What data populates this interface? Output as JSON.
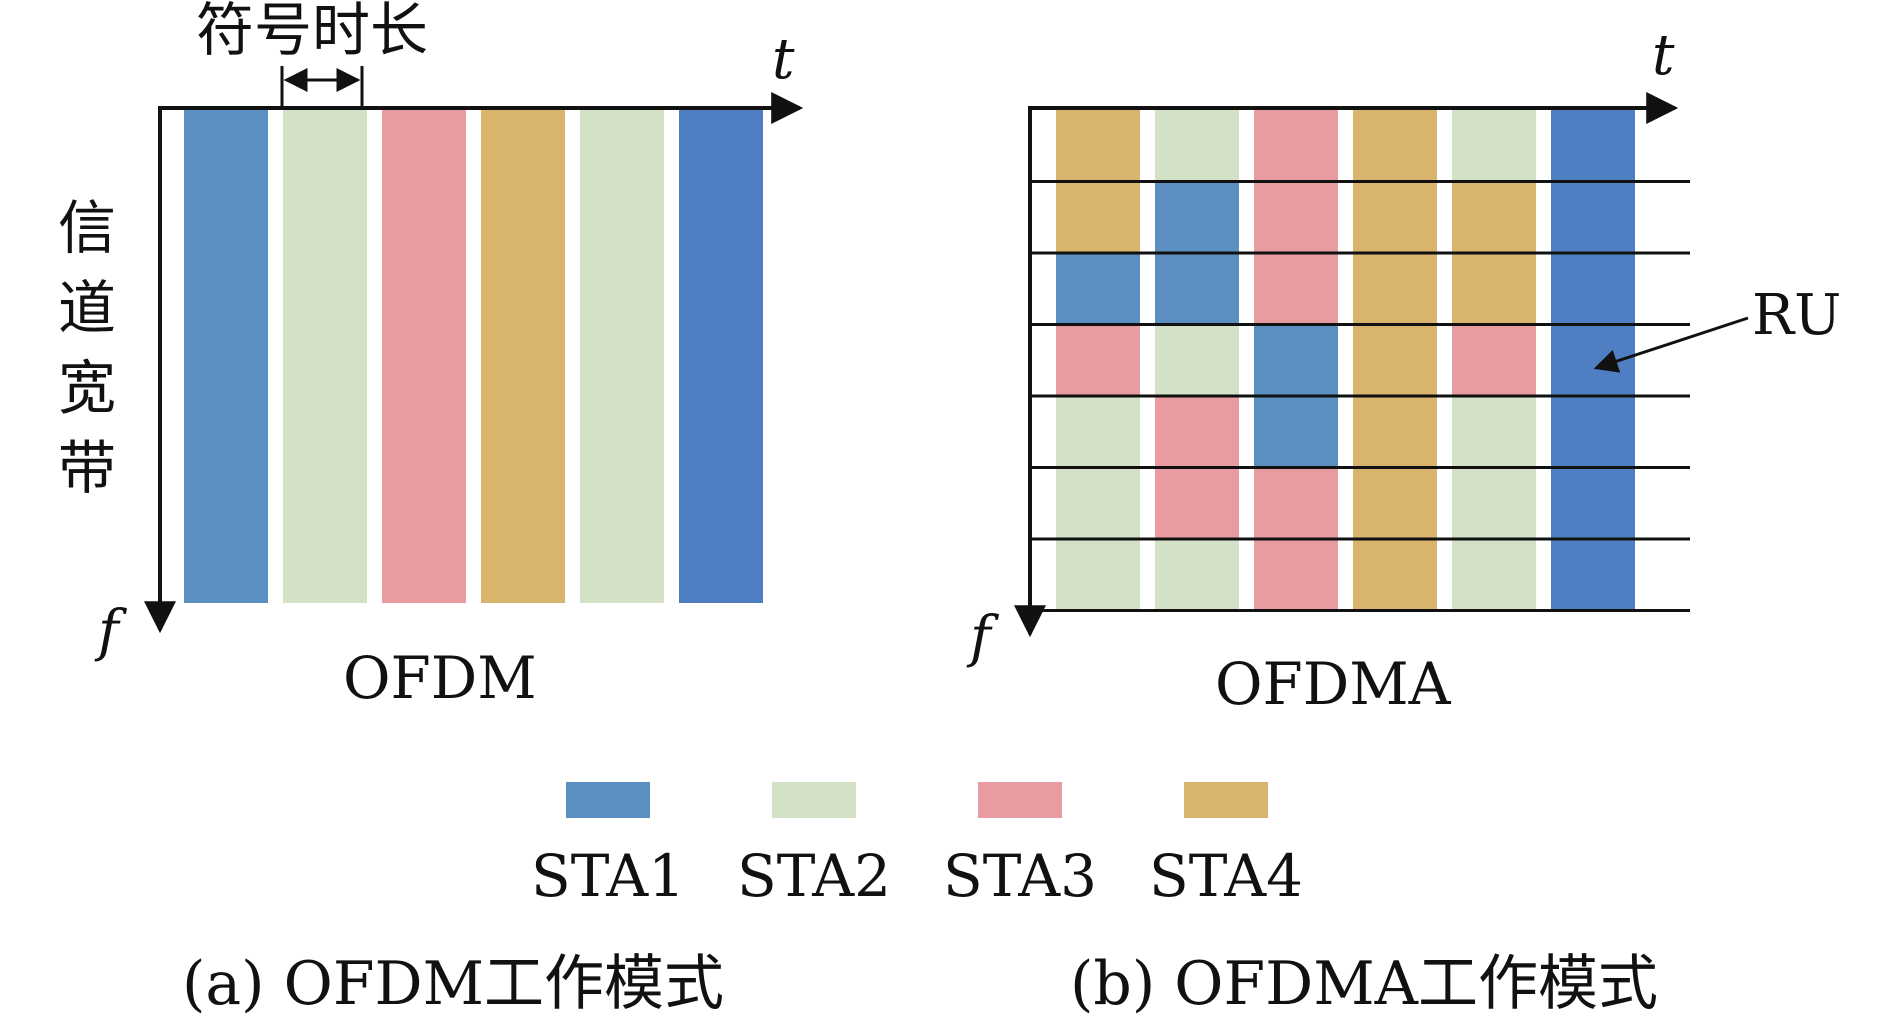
{
  "colors": {
    "STA1": "#5b8fc0",
    "STA2": "#d3e2c7",
    "STA3": "#e89ca1",
    "STA4": "#d8b46c",
    "STA1_dark": "#4f7fc2",
    "axis": "#111111"
  },
  "ofdm": {
    "title": "OFDM",
    "symbol_duration_label": "符号时长",
    "bandwidth_label": "信道宽带",
    "time_axis": "t",
    "freq_axis": "f",
    "columns": [
      "STA1",
      "STA2",
      "STA3",
      "STA4",
      "STA2",
      "STA1_dark"
    ]
  },
  "ofdma": {
    "title": "OFDMA",
    "time_axis": "t",
    "freq_axis": "f",
    "ru_label": "RU",
    "grid": [
      [
        "STA4",
        "STA2",
        "STA3",
        "STA4",
        "STA2",
        "STA1_dark"
      ],
      [
        "STA4",
        "STA1",
        "STA3",
        "STA4",
        "STA4",
        "STA1_dark"
      ],
      [
        "STA1",
        "STA1",
        "STA3",
        "STA4",
        "STA4",
        "STA1_dark"
      ],
      [
        "STA3",
        "STA2",
        "STA1",
        "STA4",
        "STA3",
        "STA1_dark"
      ],
      [
        "STA2",
        "STA3",
        "STA1",
        "STA4",
        "STA2",
        "STA1_dark"
      ],
      [
        "STA2",
        "STA3",
        "STA3",
        "STA4",
        "STA2",
        "STA1_dark"
      ],
      [
        "STA2",
        "STA2",
        "STA3",
        "STA4",
        "STA2",
        "STA1_dark"
      ]
    ]
  },
  "legend": [
    {
      "key": "STA1",
      "label": "STA1"
    },
    {
      "key": "STA2",
      "label": "STA2"
    },
    {
      "key": "STA3",
      "label": "STA3"
    },
    {
      "key": "STA4",
      "label": "STA4"
    }
  ],
  "captions": {
    "a": "(a) OFDM工作模式",
    "b": "(b) OFDMA工作模式"
  }
}
